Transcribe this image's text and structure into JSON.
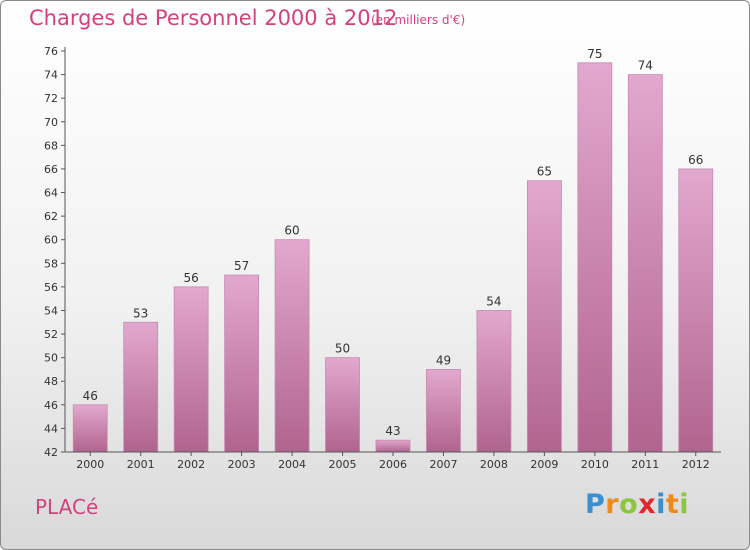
{
  "header": {
    "title": "Charges de Personnel 2000 à 2012",
    "subtitle": "(en milliers d'€)"
  },
  "footer": {
    "commune": "PLACé",
    "logo_letters": [
      "P",
      "r",
      "o",
      "x",
      "i",
      "t",
      "i"
    ],
    "logo_colors": [
      "#3a8fd0",
      "#f08a1c",
      "#8cc63f",
      "#e0282f",
      "#3a8fd0",
      "#f08a1c",
      "#8cc63f"
    ]
  },
  "colors": {
    "bar_top": "#e3a8cf",
    "bar_bottom": "#b0648e",
    "text": "#333333",
    "accent": "#d6407d"
  },
  "chart_data": {
    "type": "bar",
    "title": "Charges de Personnel 2000 à 2012",
    "subtitle": "(en milliers d'€)",
    "categories": [
      "2000",
      "2001",
      "2002",
      "2003",
      "2004",
      "2005",
      "2006",
      "2007",
      "2008",
      "2009",
      "2010",
      "2011",
      "2012"
    ],
    "values": [
      46,
      53,
      56,
      57,
      60,
      50,
      43,
      49,
      54,
      65,
      75,
      74,
      66
    ],
    "ylim": [
      42,
      76
    ],
    "yticks": [
      42,
      44,
      46,
      48,
      50,
      52,
      54,
      56,
      58,
      60,
      62,
      64,
      66,
      68,
      70,
      72,
      74,
      76
    ],
    "grid": false,
    "data_labels": true
  }
}
